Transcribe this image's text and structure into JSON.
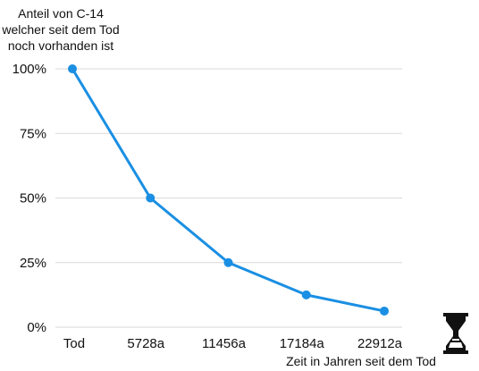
{
  "chart_data": {
    "type": "line",
    "ylabel_lines": [
      "Anteil von C-14",
      "welcher seit dem Tod",
      "noch vorhanden ist"
    ],
    "xlabel": "Zeit in Jahren seit dem Tod",
    "categories": [
      "Tod",
      "5728a",
      "11456a",
      "17184a",
      "22912a"
    ],
    "y_tick_labels": [
      "100%",
      "75%",
      "50%",
      "25%",
      "0%"
    ],
    "y_ticks": [
      100,
      75,
      50,
      25,
      0
    ],
    "ylim": [
      0,
      100
    ],
    "grid": true,
    "series": [
      {
        "values": [
          100,
          50,
          25,
          12.5,
          6.25
        ],
        "color": "#1a8fe3"
      }
    ],
    "axis_icon": "hourglass-icon"
  }
}
